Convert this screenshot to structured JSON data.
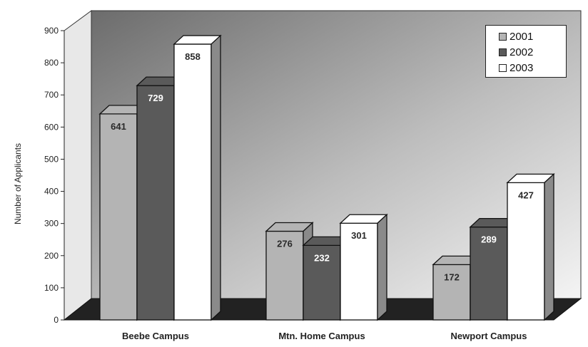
{
  "chart_data": {
    "type": "bar",
    "title": "",
    "xlabel": "",
    "ylabel": "Number of Applicants",
    "ylim": [
      0,
      900
    ],
    "yticks": [
      "0",
      "100",
      "200",
      "300",
      "400",
      "500",
      "600",
      "700",
      "800",
      "900"
    ],
    "categories": [
      "Beebe Campus",
      "Mtn. Home Campus",
      "Newport Campus"
    ],
    "series": [
      {
        "name": "2001",
        "values": [
          641,
          276,
          172
        ],
        "color": "#b4b4b4",
        "label_color": "#2a2a2a"
      },
      {
        "name": "2002",
        "values": [
          729,
          232,
          289
        ],
        "color": "#5a5a5a",
        "label_color": "#ffffff"
      },
      {
        "name": "2003",
        "values": [
          858,
          301,
          427
        ],
        "color": "#ffffff",
        "label_color": "#2a2a2a"
      }
    ],
    "grid": false,
    "legend": "top-right",
    "style": "3d-bars"
  }
}
